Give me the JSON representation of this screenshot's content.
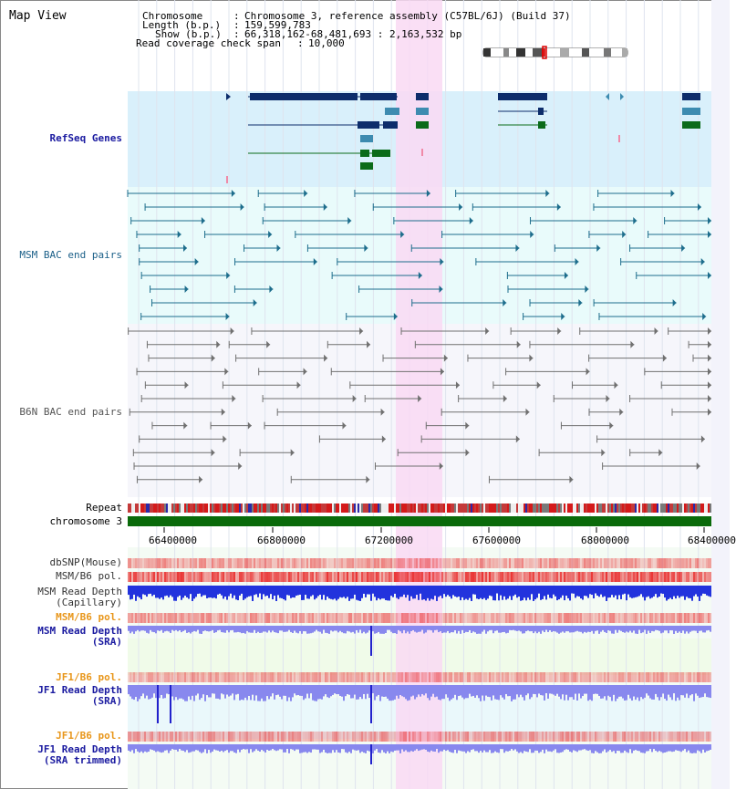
{
  "page": {
    "title": "Map View"
  },
  "header": {
    "chromosome_label": "Chromosome",
    "chromosome_value": "Chromosome 3, reference assembly (C57BL/6J) (Build 37)",
    "length_label": "Length (b.p.)",
    "length_value": "159,599,783",
    "show_label": "Show (b.p.)",
    "show_value": "66,318,162-68,481,693 : 2,163,532 bp",
    "coverage_label": "Read coverage check span",
    "coverage_value": "10,000"
  },
  "tracks": {
    "refseq": "RefSeq Genes",
    "msm_bac": "MSM BAC end pairs",
    "b6n_bac": "B6N BAC end pairs",
    "repeat": "Repeat",
    "chromosome": "chromosome 3",
    "dbsnp": "dbSNP(Mouse)",
    "msm_b6_pol_1": "MSM/B6 pol.",
    "msm_depth_cap_1": "MSM Read Depth",
    "msm_depth_cap_2": "(Capillary)",
    "msm_b6_pol_2": "MSM/B6 pol.",
    "msm_depth_sra_1": "MSM Read Depth",
    "msm_depth_sra_2": "(SRA)",
    "jf1_b6_pol_1": "JF1/B6 pol.",
    "jf1_depth_sra_1": "JF1 Read Depth",
    "jf1_depth_sra_2": "(SRA)",
    "jf1_b6_pol_2": "JF1/B6 pol.",
    "jf1_depth_trim_1": "JF1 Read Depth",
    "jf1_depth_trim_2": "(SRA trimmed)"
  },
  "axis": {
    "ticks": [
      "66400000",
      "66800000",
      "67200000",
      "67600000",
      "68000000",
      "68400000"
    ],
    "tick_positions_bp": [
      66400000,
      66800000,
      67200000,
      67600000,
      68000000,
      68400000
    ],
    "range_bp": [
      66318162,
      68481693
    ]
  },
  "colors": {
    "refseq_bg": "#d9f0fb",
    "bac_bg": "#e9fbfb",
    "highlight": "#f9d9f3",
    "gene_navy": "#0d2d6b",
    "gene_steel": "#3d8bb0",
    "gene_green": "#0b6b1a",
    "msm_bac": "#1d6d8c",
    "b6n_bac": "#707070",
    "chromosome": "#0a6a0a",
    "depth_blue": "#2233dd",
    "depth_light": "#8888ee",
    "pol_orange": "#e8961a"
  }
}
